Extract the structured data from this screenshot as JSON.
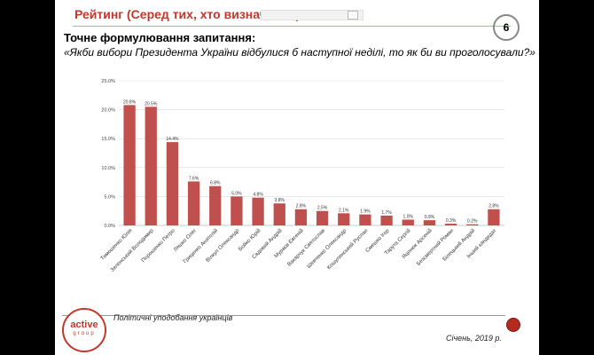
{
  "slide": {
    "title": "Рейтинг (Серед тих, хто визначився)",
    "page_number": "6",
    "question_label": "Точне формулювання запитання:",
    "question_text": "«Якби вибори Президента України відбулися б наступної неділі, то як би ви проголосували?»",
    "footer_text": "Політичні уподобання українців",
    "footer_date": "Січень, 2019 р.",
    "logo_main": "active",
    "logo_sub": "group"
  },
  "colors": {
    "bar": "#c0504d",
    "accent": "#c0392b",
    "grid": "#d9d9d9"
  },
  "chart_data": {
    "type": "bar",
    "title": "",
    "xlabel": "",
    "ylabel": "",
    "ylim": [
      0,
      25
    ],
    "yticks": [
      0,
      5,
      10,
      15,
      20,
      25
    ],
    "ytick_labels": [
      "0.0%",
      "5.0%",
      "10.0%",
      "15.0%",
      "20.0%",
      "25.0%"
    ],
    "grid": true,
    "categories": [
      "Тимошенко Юлія",
      "Зеленський Володимир",
      "Порошенко Петро",
      "Ляшко Олег",
      "Гриценко Анатолій",
      "Вілкул Олександр",
      "Бойко Юрій",
      "Садовий Андрій",
      "Мураєв Євгеній",
      "Вакарчук Святослав",
      "Шевченко Олександр",
      "Кошулинський Руслан",
      "Смешко Ігор",
      "Тарута Сергій",
      "Яценюк Арсеній",
      "Безсмертний Роман",
      "Білецький Андрій",
      "Інший кандидат"
    ],
    "values": [
      20.8,
      20.5,
      14.4,
      7.6,
      6.8,
      5.0,
      4.8,
      3.8,
      2.8,
      2.5,
      2.1,
      1.9,
      1.7,
      1.0,
      0.9,
      0.3,
      0.2,
      2.8
    ],
    "value_labels": [
      "20.8%",
      "20.5%",
      "14.4%",
      "7.6%",
      "6.8%",
      "5.0%",
      "4.8%",
      "3.8%",
      "2.8%",
      "2.5%",
      "2.1%",
      "1.9%",
      "1.7%",
      "1.0%",
      "0.9%",
      "0.3%",
      "0.2%",
      "2.8%"
    ]
  }
}
